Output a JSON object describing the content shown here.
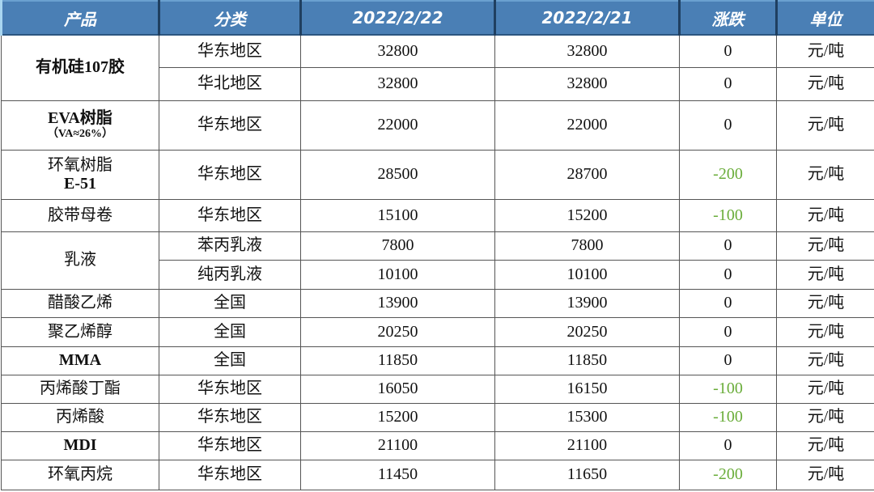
{
  "headers": [
    "产品",
    "分类",
    "2022/2/22",
    "2022/2/21",
    "涨跌",
    "单位"
  ],
  "colors": {
    "header_bg": "#4a7fb5",
    "negative": "#6aad3a"
  },
  "products": [
    {
      "name": [
        "有机硅107胶"
      ],
      "rows": [
        {
          "region": "华东地区",
          "d1": "32800",
          "d2": "32800",
          "chg": "0",
          "unit": "元/吨"
        },
        {
          "region": "华北地区",
          "d1": "32800",
          "d2": "32800",
          "chg": "0",
          "unit": "元/吨"
        }
      ]
    },
    {
      "name": [
        "EVA树脂",
        "（VA≈26%）"
      ],
      "rows": [
        {
          "region": "华东地区",
          "d1": "22000",
          "d2": "22000",
          "chg": "0",
          "unit": "元/吨"
        }
      ]
    },
    {
      "name": [
        "环氧树脂",
        "E-51"
      ],
      "rows": [
        {
          "region": "华东地区",
          "d1": "28500",
          "d2": "28700",
          "chg": "-200",
          "unit": "元/吨"
        }
      ]
    },
    {
      "name": [
        "胶带母卷"
      ],
      "rows": [
        {
          "region": "华东地区",
          "d1": "15100",
          "d2": "15200",
          "chg": "-100",
          "unit": "元/吨"
        }
      ]
    },
    {
      "name": [
        "乳液"
      ],
      "rows": [
        {
          "region": "苯丙乳液",
          "d1": "7800",
          "d2": "7800",
          "chg": "0",
          "unit": "元/吨"
        },
        {
          "region": "纯丙乳液",
          "d1": "10100",
          "d2": "10100",
          "chg": "0",
          "unit": "元/吨"
        }
      ]
    },
    {
      "name": [
        "醋酸乙烯"
      ],
      "rows": [
        {
          "region": "全国",
          "d1": "13900",
          "d2": "13900",
          "chg": "0",
          "unit": "元/吨"
        }
      ]
    },
    {
      "name": [
        "聚乙烯醇"
      ],
      "rows": [
        {
          "region": "全国",
          "d1": "20250",
          "d2": "20250",
          "chg": "0",
          "unit": "元/吨"
        }
      ]
    },
    {
      "name": [
        "MMA"
      ],
      "rows": [
        {
          "region": "全国",
          "d1": "11850",
          "d2": "11850",
          "chg": "0",
          "unit": "元/吨"
        }
      ]
    },
    {
      "name": [
        "丙烯酸丁酯"
      ],
      "rows": [
        {
          "region": "华东地区",
          "d1": "16050",
          "d2": "16150",
          "chg": "-100",
          "unit": "元/吨"
        }
      ]
    },
    {
      "name": [
        "丙烯酸"
      ],
      "rows": [
        {
          "region": "华东地区",
          "d1": "15200",
          "d2": "15300",
          "chg": "-100",
          "unit": "元/吨"
        }
      ]
    },
    {
      "name": [
        "MDI"
      ],
      "rows": [
        {
          "region": "华东地区",
          "d1": "21100",
          "d2": "21100",
          "chg": "0",
          "unit": "元/吨"
        }
      ]
    },
    {
      "name": [
        "环氧丙烷"
      ],
      "rows": [
        {
          "region": "华东地区",
          "d1": "11450",
          "d2": "11650",
          "chg": "-200",
          "unit": "元/吨"
        }
      ]
    }
  ]
}
